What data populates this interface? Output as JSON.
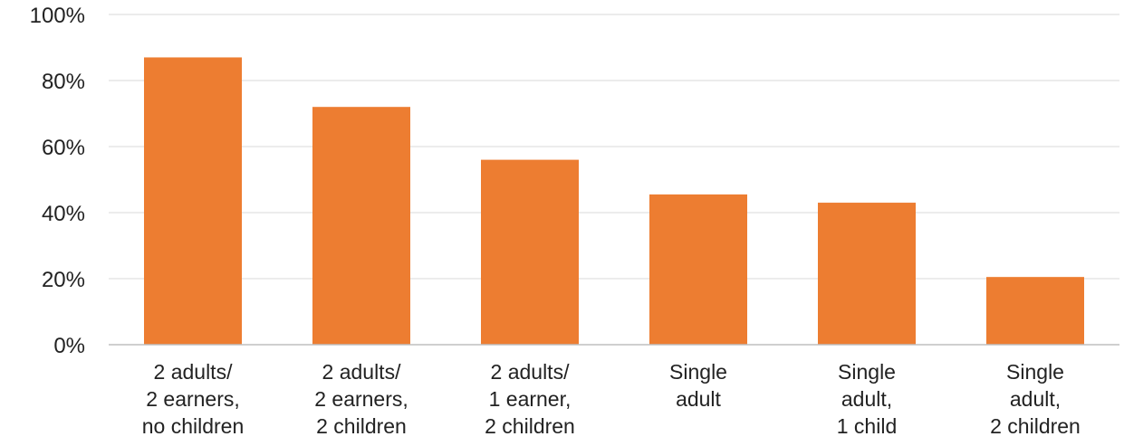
{
  "chart_data": {
    "type": "bar",
    "title": "",
    "xlabel": "",
    "ylabel": "",
    "categories": [
      [
        "2 adults/",
        "2 earners,",
        "no children"
      ],
      [
        "2 adults/",
        "2 earners,",
        "2 children"
      ],
      [
        "2 adults/",
        "1 earner,",
        "2 children"
      ],
      [
        "Single",
        "adult"
      ],
      [
        "Single",
        "adult,",
        "1 child"
      ],
      [
        "Single",
        "adult,",
        "2 children"
      ]
    ],
    "values": [
      87,
      72,
      56,
      45.5,
      43,
      20.5
    ],
    "ylim": [
      0,
      100
    ],
    "yticks": [
      0,
      20,
      40,
      60,
      80,
      100
    ],
    "ytick_labels": [
      "0%",
      "20%",
      "40%",
      "60%",
      "80%",
      "100%"
    ],
    "grid": true,
    "legend": "none",
    "bar_color": "#ED7D31"
  }
}
